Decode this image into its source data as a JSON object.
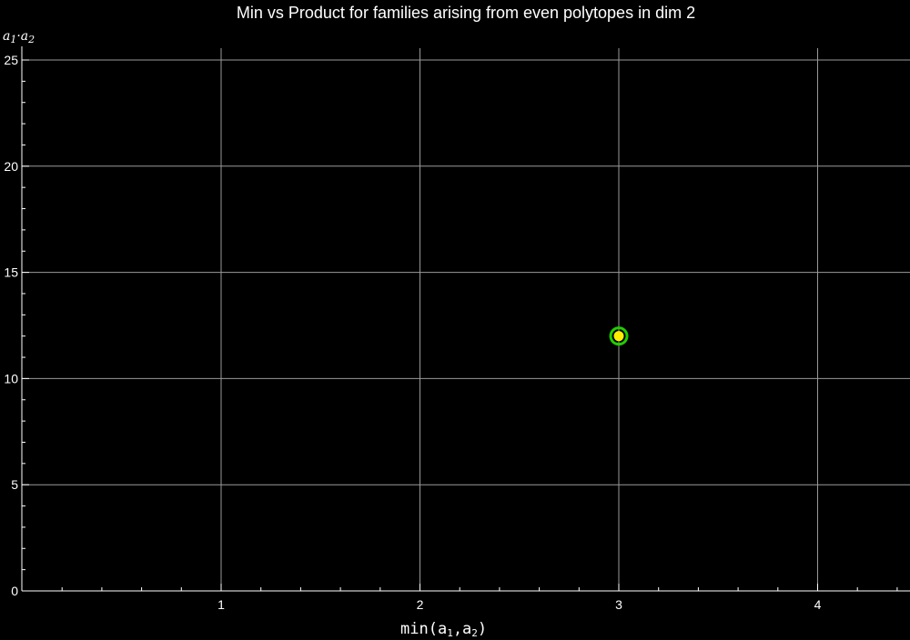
{
  "chart_data": {
    "type": "scatter",
    "title": "Min vs Product for families arising from even polytopes in dim 2",
    "xlabel": {
      "base": "min(a",
      "sub1": "1",
      "mid": ",a",
      "sub2": "2",
      "end": ")"
    },
    "ylabel": {
      "a": "a",
      "sub1": "1",
      "dot": "·a",
      "sub2": "2"
    },
    "xlim": [
      0,
      4.47
    ],
    "ylim": [
      0,
      25.3
    ],
    "xticks": [
      1,
      2,
      3,
      4
    ],
    "yticks": [
      0,
      5,
      10,
      15,
      20,
      25
    ],
    "grid": true,
    "series": [
      {
        "points": [
          {
            "x": 3,
            "y": 12
          }
        ],
        "marker_fill": "#ffee00",
        "marker_ring": "#22cc00"
      }
    ]
  },
  "colors": {
    "background": "#000000",
    "axis": "#ffffff",
    "grid": "#9a9a9a"
  }
}
